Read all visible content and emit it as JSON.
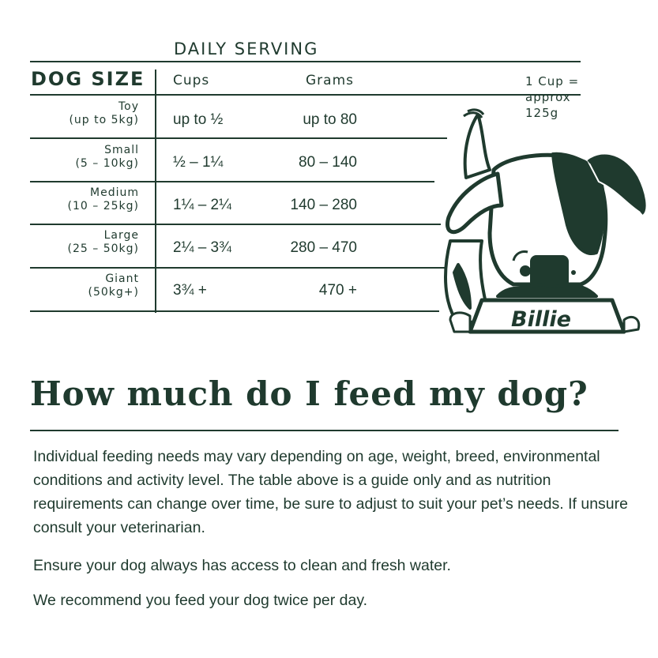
{
  "table": {
    "serving_heading": "DAILY SERVING",
    "size_heading": "DOG SIZE",
    "cups_heading": "Cups",
    "grams_heading": "Grams",
    "rows": [
      {
        "size": "Toy",
        "weight": "(up to 5kg)",
        "cups": "up to ½",
        "grams": "up to 80"
      },
      {
        "size": "Small",
        "weight": "(5 – 10kg)",
        "cups": "½ – 1¼",
        "grams": "80 – 140"
      },
      {
        "size": "Medium",
        "weight": "(10 – 25kg)",
        "cups": "1¼ – 2¼",
        "grams": "140 – 280"
      },
      {
        "size": "Large",
        "weight": "(25 – 50kg)",
        "cups": "2¼ – 3¾",
        "grams": "280 – 470"
      },
      {
        "size": "Giant",
        "weight": "(50kg+)",
        "cups": "3¾ +",
        "grams": "470 +"
      }
    ]
  },
  "cup_note": [
    "1 Cup =",
    "approx",
    "125g"
  ],
  "illustration": {
    "bowl_label": "Billie",
    "icon": "dog-eating-from-bowl"
  },
  "title": "How much do I feed my dog?",
  "paragraphs": [
    "Individual feeding needs may vary depending on age, weight, breed, environmental conditions and activity level. The table above is a guide only and as nutrition requirements can change over time, be sure to adjust to suit your pet’s needs. If unsure consult your veterinarian.",
    "Ensure your dog always has access to clean and fresh water.",
    "We recommend you feed your dog twice per day."
  ],
  "colors": {
    "ink": "#1f3a2e",
    "background": "#ffffff"
  }
}
